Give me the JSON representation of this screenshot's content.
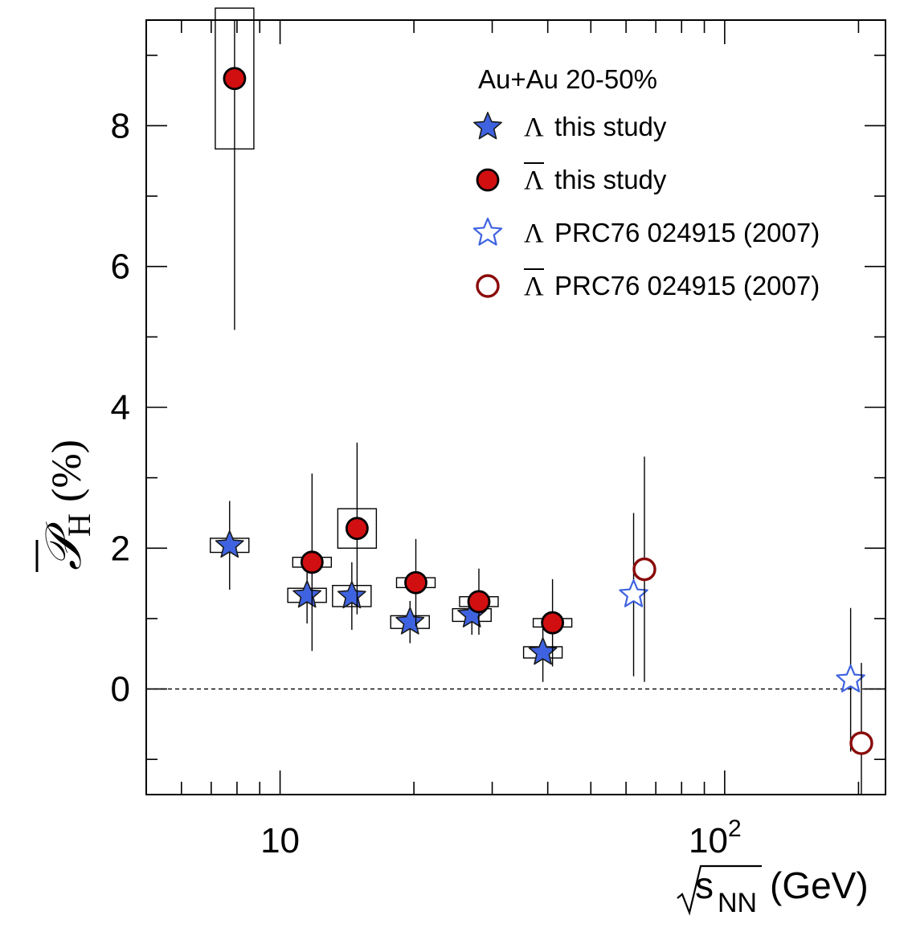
{
  "chart_data": {
    "type": "scatter",
    "title": "",
    "ylabel": {
      "symbol": "𝒫",
      "subscript": "H",
      "unit": "(%)"
    },
    "xlabel": {
      "prefix": "s",
      "subscript": "NN",
      "unit": "(GeV)"
    },
    "x_scale": "log",
    "xlim": [
      5,
      230
    ],
    "ylim": [
      -1.5,
      9.5
    ],
    "y_ticks": [
      0,
      2,
      4,
      6,
      8
    ],
    "y_tick_labels": [
      "0",
      "2",
      "4",
      "6",
      "8"
    ],
    "x_tick_labels": [
      {
        "x": 10,
        "base": "10",
        "exp": ""
      },
      {
        "x": 100,
        "base": "10",
        "exp": "2"
      }
    ],
    "reference_line_y": 0,
    "legend_header": "Au+Au 20-50%",
    "legend_position": "top-right",
    "series": [
      {
        "name": "Λ this study",
        "label_symbol": "Λ",
        "label_text": "this study",
        "overline": false,
        "marker": "star",
        "filled": true,
        "color": "#3F63E0",
        "points": [
          {
            "x": 7.7,
            "y": 2.04,
            "err": 0.63,
            "sys": 0.1
          },
          {
            "x": 11.5,
            "y": 1.33,
            "err": 0.4,
            "sys": 0.1
          },
          {
            "x": 14.5,
            "y": 1.32,
            "err": 0.48,
            "sys": 0.15
          },
          {
            "x": 19.6,
            "y": 0.95,
            "err": 0.3,
            "sys": 0.09
          },
          {
            "x": 27.0,
            "y": 1.05,
            "err": 0.28,
            "sys": 0.09
          },
          {
            "x": 39.0,
            "y": 0.52,
            "err": 0.42,
            "sys": 0.08
          }
        ]
      },
      {
        "name": "Λ̄ this study",
        "label_symbol": "Λ",
        "label_text": "this study",
        "overline": true,
        "marker": "circle",
        "filled": true,
        "color": "#D10F10",
        "points": [
          {
            "x": 7.9,
            "y": 8.67,
            "err": 3.57,
            "sys": 1.0
          },
          {
            "x": 11.8,
            "y": 1.8,
            "err": 1.26,
            "sys": 0.07
          },
          {
            "x": 14.9,
            "y": 2.28,
            "err": 1.22,
            "sys": 0.28
          },
          {
            "x": 20.2,
            "y": 1.51,
            "err": 0.62,
            "sys": 0.07
          },
          {
            "x": 28.0,
            "y": 1.24,
            "err": 0.47,
            "sys": 0.07
          },
          {
            "x": 41.0,
            "y": 0.94,
            "err": 0.62,
            "sys": 0.06
          }
        ]
      },
      {
        "name": "Λ PRC76 024915 (2007)",
        "label_symbol": "Λ",
        "label_text": "PRC76 024915 (2007)",
        "overline": false,
        "marker": "star",
        "filled": false,
        "color": "#3F63E0",
        "points": [
          {
            "x": 62.4,
            "y": 1.34,
            "err": 1.16,
            "sys": 0
          },
          {
            "x": 192.0,
            "y": 0.13,
            "err": 1.02,
            "sys": 0
          }
        ]
      },
      {
        "name": "Λ̄ PRC76 024915 (2007)",
        "label_symbol": "Λ",
        "label_text": "PRC76 024915 (2007)",
        "overline": true,
        "marker": "circle",
        "filled": false,
        "color": "#D10F10",
        "points": [
          {
            "x": 66.0,
            "y": 1.7,
            "err": 1.6,
            "sys": 0
          },
          {
            "x": 203.0,
            "y": -0.77,
            "err": 1.14,
            "sys": 0
          }
        ]
      }
    ]
  }
}
